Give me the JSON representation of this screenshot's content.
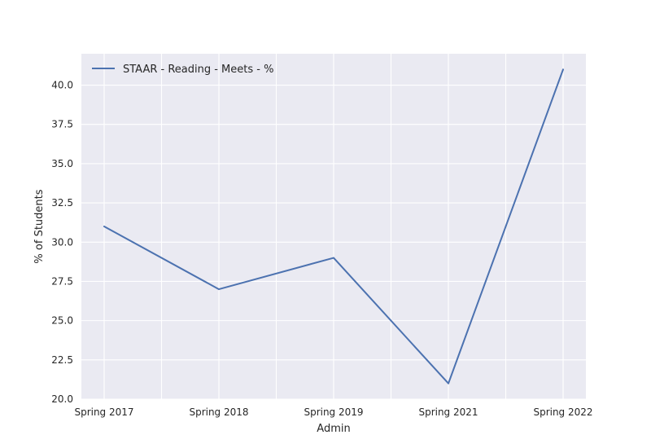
{
  "chart_data": {
    "type": "line",
    "categories": [
      "Spring 2017",
      "Spring 2018",
      "Spring 2019",
      "Spring 2021",
      "Spring 2022"
    ],
    "series": [
      {
        "name": "STAAR - Reading - Meets - %",
        "values": [
          31,
          27,
          29,
          21,
          41
        ],
        "color": "#4c72b0"
      }
    ],
    "xlabel": "Admin",
    "ylabel": "% of Students",
    "ylim": [
      20,
      42
    ],
    "yticks": [
      20.0,
      22.5,
      25.0,
      27.5,
      30.0,
      32.5,
      35.0,
      37.5,
      40.0
    ],
    "ytick_labels": [
      "20.0",
      "22.5",
      "25.0",
      "27.5",
      "30.0",
      "32.5",
      "35.0",
      "37.5",
      "40.0"
    ],
    "grid": true,
    "legend_position": "top-left",
    "background_color": "#eaeaf2",
    "grid_color": "#ffffff"
  }
}
